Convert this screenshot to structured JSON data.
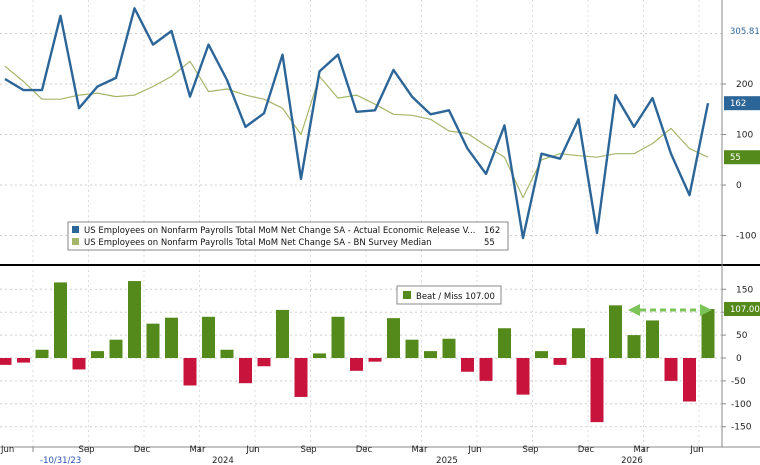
{
  "chart_data": [
    {
      "type": "line",
      "panel": "top",
      "ylim": [
        -120,
        360
      ],
      "yticks": [
        "-100",
        "0",
        "100",
        "200"
      ],
      "series": [
        {
          "name": "US Employees on Nonfarm Payrolls Total MoM Net Change SA - Actual Economic Release V...",
          "value_label": "162",
          "color": "#2c6597",
          "values": [
            210,
            188,
            188,
            335,
            152,
            195,
            212,
            350,
            278,
            305,
            175,
            278,
            208,
            115,
            142,
            258,
            12,
            225,
            258,
            145,
            148,
            228,
            175,
            140,
            148,
            72,
            22,
            118,
            -105,
            62,
            52,
            130,
            -95,
            178,
            115,
            172,
            62,
            -20,
            162
          ]
        },
        {
          "name": "US Employees on Nonfarm Payrolls Total MoM Net Change SA - BN Survey Median",
          "value_label": "55",
          "color": "#a5b66a",
          "values": [
            235,
            205,
            170,
            170,
            178,
            182,
            175,
            178,
            195,
            215,
            245,
            185,
            190,
            178,
            170,
            152,
            100,
            215,
            172,
            178,
            160,
            140,
            138,
            130,
            107,
            102,
            78,
            55,
            -25,
            50,
            62,
            58,
            55,
            62,
            62,
            82,
            112,
            72,
            55
          ]
        }
      ],
      "last_value_flags": [
        "305.81",
        "162",
        "55"
      ]
    },
    {
      "type": "bar",
      "panel": "bottom",
      "ylim": [
        -160,
        165
      ],
      "yticks": [
        "-150",
        "-100",
        "-50",
        "0",
        "50",
        "100",
        "150"
      ],
      "series": [
        {
          "name": "Beat / Miss",
          "value_label": "107.00",
          "positive_color": "#548a1c",
          "negative_color": "#c8143c",
          "values": [
            -15,
            -10,
            18,
            165,
            -25,
            15,
            40,
            168,
            75,
            88,
            -60,
            90,
            18,
            -55,
            -18,
            105,
            -85,
            10,
            90,
            -28,
            -8,
            87,
            40,
            15,
            42,
            -30,
            -50,
            65,
            -80,
            15,
            -15,
            65,
            -140,
            115,
            50,
            82,
            -50,
            -95,
            107
          ]
        }
      ],
      "flag": "107.00"
    }
  ],
  "x_axis": {
    "month_labels": [
      "Jun",
      "Sep",
      "Dec",
      "Mar",
      "Jun",
      "Sep",
      "Dec",
      "Mar",
      "Jun",
      "Sep",
      "Dec",
      "Mar",
      "Jun"
    ],
    "year_labels": [
      "2024",
      "2025",
      "2026"
    ],
    "date_tag": "-10/31/23"
  }
}
